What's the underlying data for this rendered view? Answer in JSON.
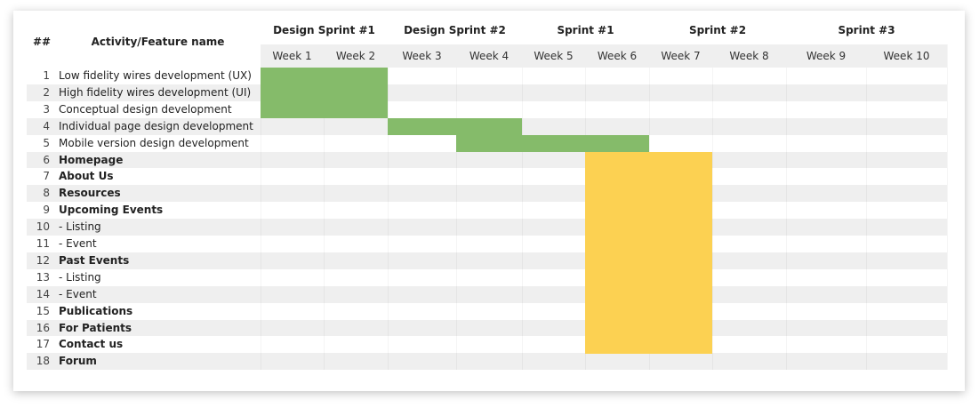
{
  "header": {
    "number": "##",
    "activity": "Activity/Feature name",
    "sprints": [
      "Design Sprint #1",
      "Design Sprint #2",
      "Sprint #1",
      "Sprint #2",
      "Sprint #3"
    ],
    "weeks": [
      "Week 1",
      "Week 2",
      "Week 3",
      "Week 4",
      "Week 5",
      "Week 6",
      "Week 7",
      "Week 8",
      "Week 9",
      "Week 10"
    ]
  },
  "rows": [
    {
      "number": "1",
      "name": "Low fidelity wires development (UX)",
      "bold": false,
      "bar": {
        "start": 1,
        "end": 2,
        "color": "#85bb6a"
      }
    },
    {
      "number": "2",
      "name": "High fidelity wires development (UI)",
      "bold": false,
      "bar": {
        "start": 1,
        "end": 2,
        "color": "#85bb6a"
      }
    },
    {
      "number": "3",
      "name": "Conceptual design development",
      "bold": false,
      "bar": {
        "start": 1,
        "end": 2,
        "color": "#85bb6a"
      }
    },
    {
      "number": "4",
      "name": "Individual page design development",
      "bold": false,
      "bar": {
        "start": 3,
        "end": 4,
        "color": "#85bb6a"
      }
    },
    {
      "number": "5",
      "name": "Mobile version design development",
      "bold": false,
      "bar": {
        "start": 4,
        "end": 6,
        "color": "#85bb6a"
      }
    },
    {
      "number": "6",
      "name": "Homepage",
      "bold": true,
      "bar": {
        "start": 6,
        "end": 7,
        "color": "#fcd152"
      }
    },
    {
      "number": "7",
      "name": "About Us",
      "bold": true,
      "bar": {
        "start": 6,
        "end": 7,
        "color": "#fcd152"
      }
    },
    {
      "number": "8",
      "name": "Resources",
      "bold": true,
      "bar": {
        "start": 6,
        "end": 7,
        "color": "#fcd152"
      }
    },
    {
      "number": "9",
      "name": "Upcoming Events",
      "bold": true,
      "bar": {
        "start": 6,
        "end": 7,
        "color": "#fcd152"
      }
    },
    {
      "number": "10",
      "name": "- Listing",
      "bold": false,
      "bar": {
        "start": 6,
        "end": 7,
        "color": "#fcd152"
      }
    },
    {
      "number": "11",
      "name": "- Event",
      "bold": false,
      "bar": {
        "start": 6,
        "end": 7,
        "color": "#fcd152"
      }
    },
    {
      "number": "12",
      "name": "Past Events",
      "bold": true,
      "bar": {
        "start": 6,
        "end": 7,
        "color": "#fcd152"
      }
    },
    {
      "number": "13",
      "name": "- Listing",
      "bold": false,
      "bar": {
        "start": 6,
        "end": 7,
        "color": "#fcd152"
      }
    },
    {
      "number": "14",
      "name": "- Event",
      "bold": false,
      "bar": {
        "start": 6,
        "end": 7,
        "color": "#fcd152"
      }
    },
    {
      "number": "15",
      "name": "Publications",
      "bold": true,
      "bar": {
        "start": 6,
        "end": 7,
        "color": "#fcd152"
      }
    },
    {
      "number": "16",
      "name": "For Patients",
      "bold": true,
      "bar": {
        "start": 6,
        "end": 7,
        "color": "#fcd152"
      }
    },
    {
      "number": "17",
      "name": "Contact us",
      "bold": true,
      "bar": {
        "start": 6,
        "end": 7,
        "color": "#fcd152"
      }
    },
    {
      "number": "18",
      "name": "Forum",
      "bold": true
    }
  ]
}
